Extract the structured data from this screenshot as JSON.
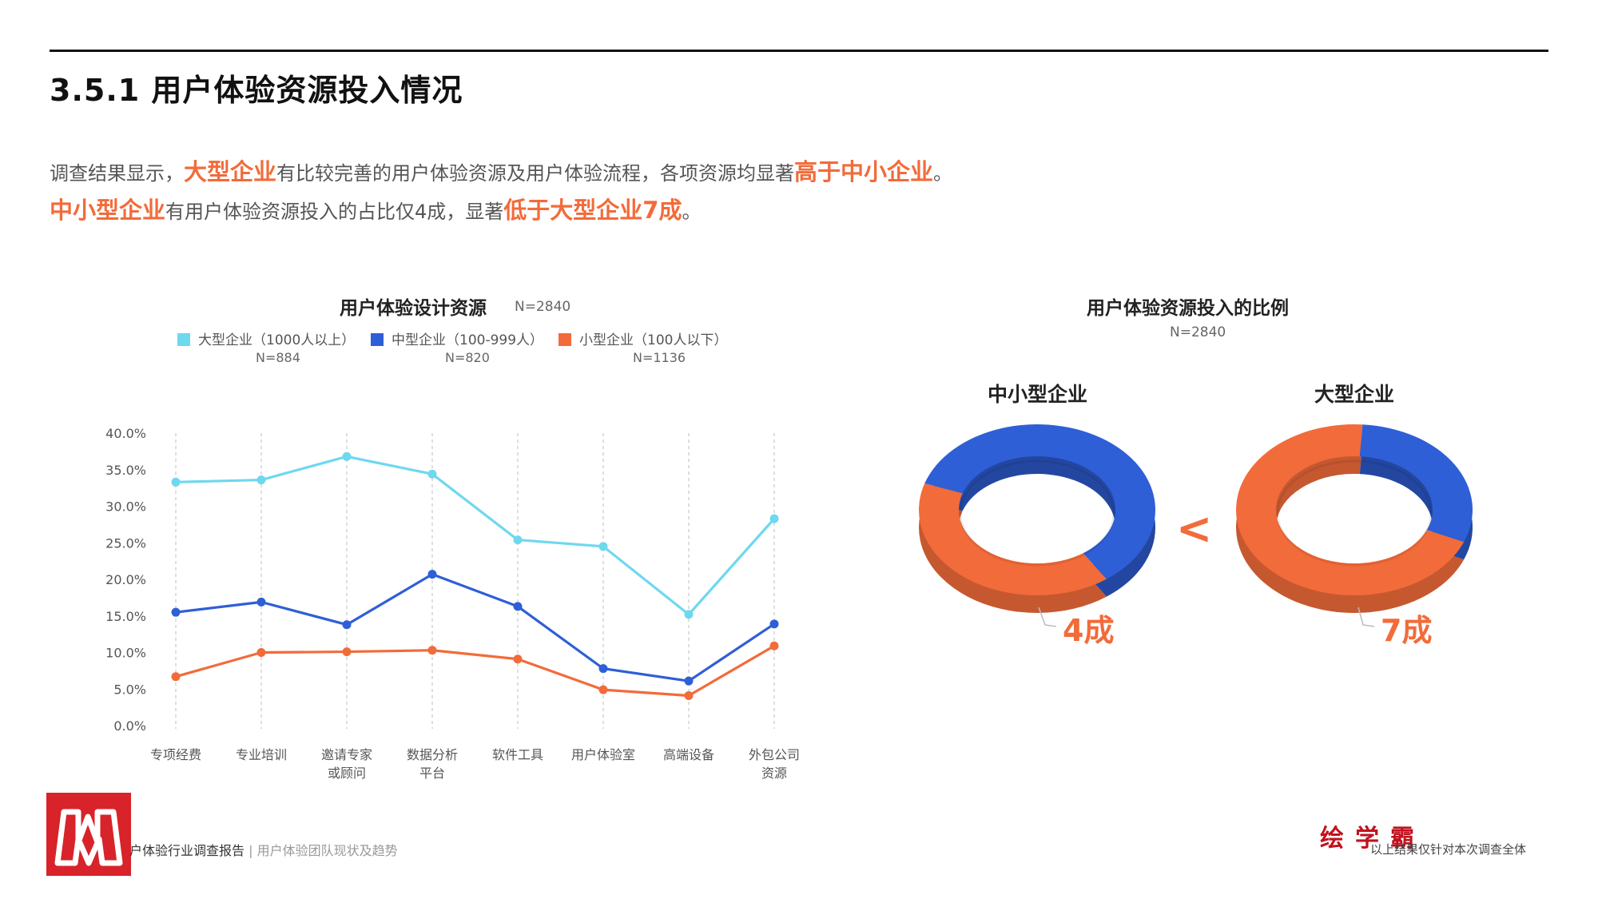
{
  "page": {
    "title": "3.5.1 用户体验资源投入情况",
    "intro_line1": [
      {
        "text": "调查结果显示，",
        "hl": false
      },
      {
        "text": "大型企业",
        "hl": true
      },
      {
        "text": "有比较完善的用户体验资源及用户体验流程，各项资源均显著",
        "hl": false
      },
      {
        "text": "高于中小企业",
        "hl": true
      },
      {
        "text": "。",
        "hl": false
      }
    ],
    "intro_line2": [
      {
        "text": "中小型企业",
        "hl": true
      },
      {
        "text": "有用户体验资源投入的占比仅4成，显著",
        "hl": false
      },
      {
        "text": "低于大型企业7成",
        "hl": true
      },
      {
        "text": "。",
        "hl": false
      }
    ]
  },
  "colors": {
    "large": "#6ed8ef",
    "medium": "#2f5fd6",
    "small": "#f26b3a",
    "highlight": "#f26b3a",
    "brand": "#d8232a"
  },
  "chart_data": [
    {
      "type": "line",
      "title": "用户体验设计资源",
      "n_label": "N=2840",
      "categories": [
        "专项经费",
        "专业培训",
        "邀请专家\n或顾问",
        "数据分析\n平台",
        "软件工具",
        "用户体验室",
        "高端设备",
        "外包公司\n资源"
      ],
      "y_ticks": [
        "40.0%",
        "35.0%",
        "30.0%",
        "25.0%",
        "20.0%",
        "15.0%",
        "10.0%",
        "5.0%",
        "0.0%"
      ],
      "ylim": [
        0,
        40
      ],
      "grid": "vertical-dashed",
      "series": [
        {
          "key": "large",
          "name": "大型企业（1000人以上）",
          "n": "N=884",
          "values": [
            33.3,
            33.6,
            36.8,
            34.4,
            25.4,
            24.5,
            15.2,
            28.3
          ]
        },
        {
          "key": "medium",
          "name": "中型企业（100-999人）",
          "n": "N=820",
          "values": [
            15.5,
            16.9,
            13.8,
            20.7,
            16.3,
            7.8,
            6.1,
            13.9
          ]
        },
        {
          "key": "small",
          "name": "小型企业（100人以下）",
          "n": "N=1136",
          "values": [
            6.7,
            10.0,
            10.1,
            10.3,
            9.1,
            4.9,
            4.1,
            10.9
          ]
        }
      ]
    },
    {
      "type": "pie",
      "title": "用户体验资源投入的比例",
      "n_label": "N=2840",
      "comparison_symbol": "<",
      "donuts": [
        {
          "label": "中小型企业",
          "value_label": "4成",
          "invested": 40
        },
        {
          "label": "大型企业",
          "value_label": "7成",
          "invested": 70
        }
      ]
    }
  ],
  "footer": {
    "report_title": "户体验行业调查报告",
    "separator": " | ",
    "report_subtitle": "用户体验团队现状及趋势",
    "brand": "绘学霸",
    "note": "以上结果仅针对本次调查全体"
  }
}
